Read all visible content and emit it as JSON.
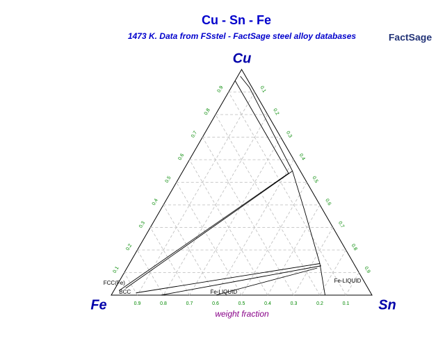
{
  "chart_data": {
    "type": "ternary",
    "title": "Cu - Sn - Fe",
    "subtitle": "1473 K.  Data from FSstel - FactSage steel alloy databases",
    "logo": "FactSage",
    "vertices": {
      "top": "Cu",
      "left": "Fe",
      "right": "Sn"
    },
    "axis_label": "weight fraction",
    "left_ticks": [
      0.1,
      0.2,
      0.3,
      0.4,
      0.5,
      0.6,
      0.7,
      0.8,
      0.9
    ],
    "right_ticks": [
      0.1,
      0.2,
      0.3,
      0.4,
      0.5,
      0.6,
      0.7,
      0.8,
      0.9
    ],
    "bottom_ticks": [
      0.9,
      0.8,
      0.7,
      0.6,
      0.5,
      0.4,
      0.3,
      0.2,
      0.1
    ],
    "grid": true,
    "boundaries": [
      {
        "cu": [
          0.97,
          0.92,
          0.55,
          0.38,
          0.14,
          0
        ],
        "sn": [
          0.01,
          0.07,
          0.42,
          0.55,
          0.73,
          0.82
        ]
      },
      {
        "cu": [
          0.95,
          0.54,
          0.02
        ],
        "sn": [
          0,
          0.41,
          0.02
        ]
      },
      {
        "cu": [
          0.55,
          0.03
        ],
        "sn": [
          0.42,
          0.04
        ]
      },
      {
        "cu": [
          0.14,
          0.01
        ],
        "sn": [
          0.73,
          0.09
        ]
      },
      {
        "cu": [
          0.13,
          0
        ],
        "sn": [
          0.74,
          0.19
        ]
      },
      {
        "cu": [
          0.12,
          0
        ],
        "sn": [
          0.73,
          0.4
        ]
      }
    ],
    "phase_labels": [
      {
        "text": "FCC(Fe)",
        "cu": 0.04,
        "sn": -0.05
      },
      {
        "text": "BCC",
        "cu": 0.0,
        "sn": 0.03
      },
      {
        "text": "Fe-LIQUID",
        "cu": 0.0,
        "sn": 0.38
      },
      {
        "text": "Fe-LIQUID",
        "cu": 0.05,
        "sn": 0.83
      }
    ]
  }
}
